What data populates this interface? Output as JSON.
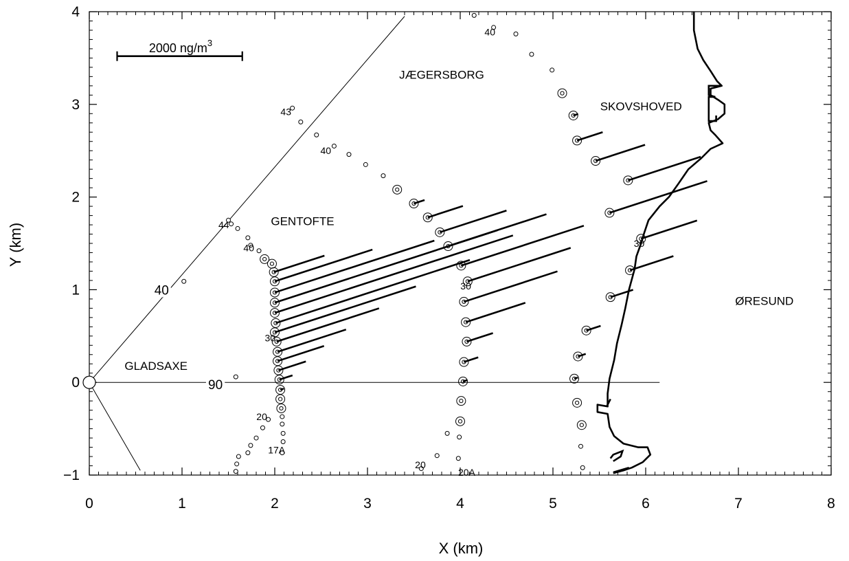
{
  "chart_data": {
    "type": "scatter",
    "xlabel": "X (km)",
    "ylabel": "Y (km)",
    "xlim": [
      0,
      8
    ],
    "ylim": [
      -1,
      4
    ],
    "x_ticks": [
      "0",
      "1",
      "2",
      "3",
      "4",
      "5",
      "6",
      "7",
      "8"
    ],
    "y_ticks": [
      "−1",
      "0",
      "1",
      "2",
      "3",
      "4"
    ],
    "scale_bar": {
      "label": "2000  ng/m",
      "superscript": "3",
      "x": [
        0.3,
        1.65
      ],
      "y": 3.52
    },
    "source_point": {
      "x": 0,
      "y": 0
    },
    "rays": [
      {
        "x": [
          0,
          3.4
        ],
        "y": [
          0,
          3.95
        ]
      },
      {
        "x": [
          0,
          6.15
        ],
        "y": [
          0,
          0
        ]
      },
      {
        "x": [
          0,
          0.55
        ],
        "y": [
          0,
          -0.95
        ]
      }
    ],
    "ray_labels": [
      {
        "text": "40",
        "x": 0.78,
        "y": 1.0
      },
      {
        "text": "90",
        "x": 1.36,
        "y": -0.02
      }
    ],
    "region_labels": [
      {
        "text": "JÆGERSBORG",
        "x": 3.8,
        "y": 3.32
      },
      {
        "text": "SKOVSHOVED",
        "x": 5.95,
        "y": 2.98
      },
      {
        "text": "GENTOFTE",
        "x": 2.3,
        "y": 1.74
      },
      {
        "text": "GLADSAXE",
        "x": 0.72,
        "y": 0.18
      },
      {
        "text": "ØRESUND",
        "x": 7.28,
        "y": 0.88
      }
    ],
    "station_labels": [
      {
        "text": "40",
        "x": 4.32,
        "y": 3.78
      },
      {
        "text": "43",
        "x": 2.12,
        "y": 2.92
      },
      {
        "text": "40",
        "x": 2.55,
        "y": 2.5
      },
      {
        "text": "44",
        "x": 1.45,
        "y": 1.7
      },
      {
        "text": "40",
        "x": 1.72,
        "y": 1.45
      },
      {
        "text": "30",
        "x": 1.95,
        "y": 0.48
      },
      {
        "text": "30",
        "x": 4.06,
        "y": 1.04
      },
      {
        "text": "30",
        "x": 5.93,
        "y": 1.5
      },
      {
        "text": "20",
        "x": 1.86,
        "y": -0.37
      },
      {
        "text": "17A",
        "x": 2.02,
        "y": -0.73
      },
      {
        "text": "20",
        "x": 3.57,
        "y": -0.89
      },
      {
        "text": "20A",
        "x": 4.07,
        "y": -0.97
      }
    ],
    "series": [
      {
        "points": [
          {
            "x": 1.58,
            "y": -0.96
          },
          {
            "x": 1.59,
            "y": -0.88
          },
          {
            "x": 1.61,
            "y": -0.8
          },
          {
            "x": 1.71,
            "y": -0.76
          },
          {
            "x": 1.74,
            "y": -0.68
          },
          {
            "x": 1.8,
            "y": -0.6
          },
          {
            "x": 1.87,
            "y": -0.49
          },
          {
            "x": 1.93,
            "y": -0.4
          },
          {
            "x": 2.08,
            "y": -0.76
          },
          {
            "x": 2.09,
            "y": -0.64
          },
          {
            "x": 2.09,
            "y": -0.55
          },
          {
            "x": 2.08,
            "y": -0.45
          },
          {
            "x": 2.08,
            "y": -0.37
          },
          {
            "x": 2.07,
            "y": -0.28,
            "v": 0
          },
          {
            "x": 2.06,
            "y": -0.18,
            "v": 0
          },
          {
            "x": 2.06,
            "y": -0.08,
            "v": 60
          },
          {
            "x": 2.05,
            "y": 0.03,
            "v": 220
          },
          {
            "x": 2.04,
            "y": 0.13,
            "v": 460
          },
          {
            "x": 2.03,
            "y": 0.23,
            "v": 780
          },
          {
            "x": 2.03,
            "y": 0.33,
            "v": 1150
          },
          {
            "x": 2.02,
            "y": 0.44,
            "v": 1720
          },
          {
            "x": 2.0,
            "y": 0.54,
            "v": 2370
          },
          {
            "x": 2.01,
            "y": 0.64,
            "v": 3260
          },
          {
            "x": 2.0,
            "y": 0.75,
            "v": 4000
          },
          {
            "x": 2.0,
            "y": 0.86,
            "v": 3740
          },
          {
            "x": 2.0,
            "y": 0.97,
            "v": 2680
          },
          {
            "x": 2.0,
            "y": 1.09,
            "v": 1640
          },
          {
            "x": 1.99,
            "y": 1.19,
            "v": 850
          },
          {
            "x": 1.97,
            "y": 1.28,
            "v": 0
          },
          {
            "x": 1.89,
            "y": 1.33,
            "v": 0
          },
          {
            "x": 1.83,
            "y": 1.42
          },
          {
            "x": 1.74,
            "y": 1.48
          },
          {
            "x": 1.71,
            "y": 1.56
          },
          {
            "x": 1.6,
            "y": 1.66
          },
          {
            "x": 1.53,
            "y": 1.71
          },
          {
            "x": 1.5,
            "y": 1.75
          }
        ]
      },
      {
        "points": [
          {
            "x": 1.02,
            "y": 1.09
          }
        ]
      },
      {
        "points": [
          {
            "x": 1.58,
            "y": 0.06
          }
        ]
      },
      {
        "points": [
          {
            "x": 2.19,
            "y": 2.96
          },
          {
            "x": 2.28,
            "y": 2.81
          },
          {
            "x": 2.45,
            "y": 2.67
          },
          {
            "x": 2.64,
            "y": 2.55
          },
          {
            "x": 2.8,
            "y": 2.46
          },
          {
            "x": 2.98,
            "y": 2.35
          },
          {
            "x": 3.17,
            "y": 2.23
          },
          {
            "x": 3.32,
            "y": 2.08,
            "v": 0
          },
          {
            "x": 3.5,
            "y": 1.93,
            "v": 180
          },
          {
            "x": 3.65,
            "y": 1.78,
            "v": 590
          },
          {
            "x": 3.78,
            "y": 1.62,
            "v": 1120
          },
          {
            "x": 3.87,
            "y": 1.47,
            "v": 1650
          },
          {
            "x": 4.01,
            "y": 1.26,
            "v": 2060
          },
          {
            "x": 4.08,
            "y": 1.09,
            "v": 1730
          },
          {
            "x": 4.04,
            "y": 0.87,
            "v": 1570
          },
          {
            "x": 4.06,
            "y": 0.65,
            "v": 1000
          },
          {
            "x": 4.07,
            "y": 0.44,
            "v": 440
          },
          {
            "x": 4.04,
            "y": 0.22,
            "v": 240
          },
          {
            "x": 4.03,
            "y": 0.01,
            "v": 70
          },
          {
            "x": 4.01,
            "y": -0.2,
            "v": 0
          },
          {
            "x": 4.0,
            "y": -0.42,
            "v": 0
          },
          {
            "x": 3.99,
            "y": -0.59
          },
          {
            "x": 3.98,
            "y": -0.82
          },
          {
            "x": 3.86,
            "y": -0.55
          },
          {
            "x": 3.75,
            "y": -0.79
          },
          {
            "x": 3.58,
            "y": -0.93
          }
        ]
      },
      {
        "points": [
          {
            "x": 4.15,
            "y": 3.96
          },
          {
            "x": 4.36,
            "y": 3.83
          },
          {
            "x": 4.6,
            "y": 3.76
          },
          {
            "x": 4.77,
            "y": 3.54
          },
          {
            "x": 4.99,
            "y": 3.37
          },
          {
            "x": 5.1,
            "y": 3.12,
            "v": 0
          },
          {
            "x": 5.22,
            "y": 2.88,
            "v": 80
          },
          {
            "x": 5.26,
            "y": 2.61,
            "v": 430
          },
          {
            "x": 5.46,
            "y": 2.39,
            "v": 830
          },
          {
            "x": 5.81,
            "y": 2.18,
            "v": 1220
          },
          {
            "x": 5.61,
            "y": 1.83,
            "v": 1640
          },
          {
            "x": 5.95,
            "y": 1.55,
            "v": 940
          },
          {
            "x": 5.83,
            "y": 1.21,
            "v": 730
          },
          {
            "x": 5.62,
            "y": 0.92,
            "v": 380
          },
          {
            "x": 5.36,
            "y": 0.56,
            "v": 240
          },
          {
            "x": 5.27,
            "y": 0.28,
            "v": 130
          },
          {
            "x": 5.23,
            "y": 0.04,
            "v": 60
          },
          {
            "x": 5.26,
            "y": -0.22,
            "v": 0
          },
          {
            "x": 5.31,
            "y": -0.46,
            "v": 0
          },
          {
            "x": 5.3,
            "y": -0.69
          },
          {
            "x": 5.32,
            "y": -0.92
          }
        ]
      }
    ],
    "vector_direction_deg": 18,
    "vector_scale_ng_per_km": 1481,
    "coastline": [
      [
        6.52,
        4.0
      ],
      [
        6.52,
        3.8
      ],
      [
        6.56,
        3.6
      ],
      [
        6.62,
        3.48
      ],
      [
        6.7,
        3.36
      ],
      [
        6.77,
        3.25
      ],
      [
        6.82,
        3.2
      ],
      [
        6.7,
        3.17
      ],
      [
        6.7,
        3.1
      ],
      [
        6.78,
        3.05
      ],
      [
        6.85,
        3.0
      ],
      [
        6.85,
        2.9
      ],
      [
        6.78,
        2.84
      ],
      [
        6.68,
        2.8
      ],
      [
        6.7,
        2.72
      ],
      [
        6.75,
        2.67
      ],
      [
        6.83,
        2.58
      ],
      [
        6.7,
        2.52
      ],
      [
        6.6,
        2.42
      ],
      [
        6.46,
        2.3
      ],
      [
        6.35,
        2.14
      ],
      [
        6.25,
        2.0
      ],
      [
        6.15,
        1.9
      ],
      [
        6.03,
        1.75
      ],
      [
        5.98,
        1.6
      ],
      [
        5.95,
        1.5
      ],
      [
        5.9,
        1.36
      ],
      [
        5.88,
        1.22
      ],
      [
        5.82,
        1.0
      ],
      [
        5.78,
        0.8
      ],
      [
        5.74,
        0.62
      ],
      [
        5.69,
        0.42
      ],
      [
        5.66,
        0.24
      ],
      [
        5.61,
        0.04
      ],
      [
        5.59,
        -0.12
      ],
      [
        5.59,
        -0.26
      ],
      [
        5.48,
        -0.24
      ],
      [
        5.48,
        -0.32
      ],
      [
        5.59,
        -0.34
      ],
      [
        5.61,
        -0.48
      ],
      [
        5.66,
        -0.58
      ],
      [
        5.76,
        -0.66
      ],
      [
        5.92,
        -0.7
      ],
      [
        6.02,
        -0.7
      ],
      [
        6.05,
        -0.78
      ],
      [
        5.97,
        -0.86
      ],
      [
        5.85,
        -0.92
      ],
      [
        5.76,
        -0.95
      ],
      [
        5.65,
        -0.98
      ]
    ],
    "harbour": [
      [
        6.81,
        3.2
      ],
      [
        6.68,
        3.2
      ],
      [
        6.68,
        3.1
      ],
      [
        6.75,
        3.08
      ],
      [
        6.68,
        3.08
      ],
      [
        6.68,
        2.82
      ],
      [
        6.76,
        2.82
      ],
      [
        6.76,
        2.88
      ]
    ],
    "harbour_south": [
      [
        5.58,
        -0.26
      ],
      [
        5.62,
        -0.18
      ]
    ],
    "jetty": [
      [
        5.62,
        -0.82
      ],
      [
        5.65,
        -0.78
      ],
      [
        5.75,
        -0.74
      ],
      [
        5.73,
        -0.8
      ],
      [
        5.65,
        -0.85
      ]
    ],
    "jetty_tail": [
      [
        5.65,
        -0.97
      ],
      [
        5.82,
        -0.92
      ]
    ]
  }
}
